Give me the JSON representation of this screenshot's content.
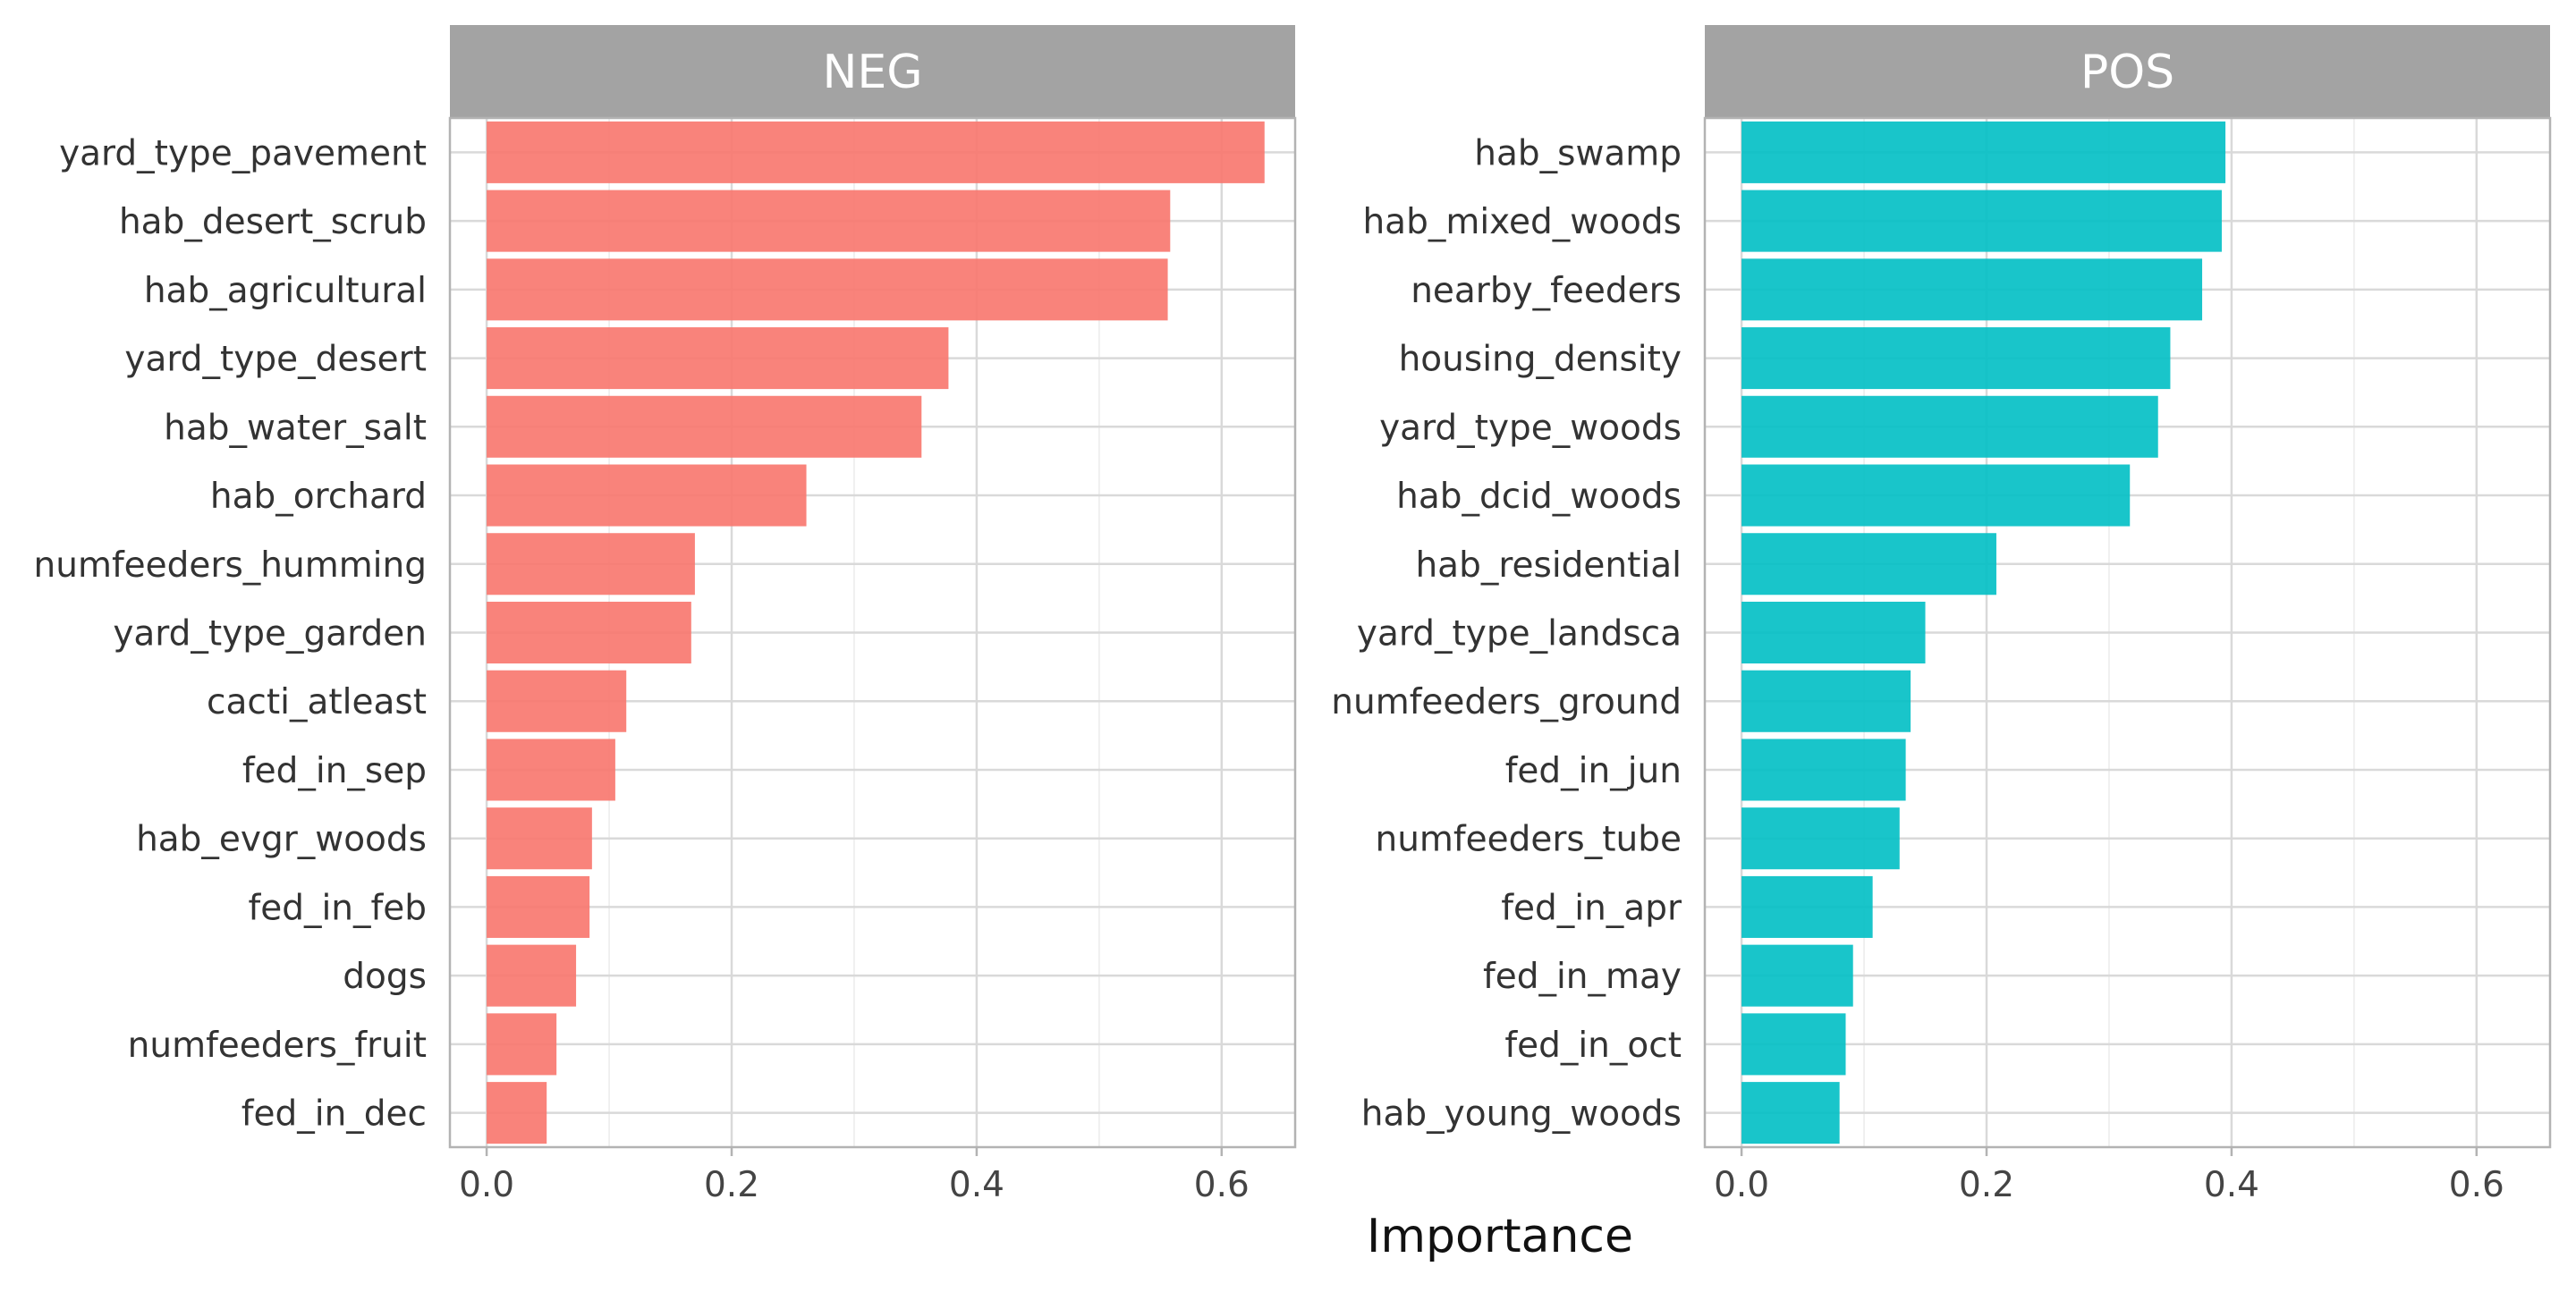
{
  "chart_data": {
    "type": "bar",
    "orientation": "horizontal",
    "xlabel": "Importance",
    "xlim": [
      -0.03,
      0.66
    ],
    "x_ticks": [
      0.0,
      0.2,
      0.4,
      0.6
    ],
    "x_tick_labels": [
      "0.0",
      "0.2",
      "0.4",
      "0.6"
    ],
    "grid": true,
    "panels": [
      {
        "label": "NEG",
        "color": "#F8766D",
        "categories": [
          "yard_type_pavement",
          "hab_desert_scrub",
          "hab_agricultural",
          "yard_type_desert",
          "hab_water_salt",
          "hab_orchard",
          "numfeeders_humming",
          "yard_type_garden",
          "cacti_atleast",
          "fed_in_sep",
          "hab_evgr_woods",
          "fed_in_feb",
          "dogs",
          "numfeeders_fruit",
          "fed_in_dec"
        ],
        "values": [
          0.635,
          0.558,
          0.556,
          0.377,
          0.355,
          0.261,
          0.17,
          0.167,
          0.114,
          0.105,
          0.086,
          0.084,
          0.073,
          0.057,
          0.049
        ]
      },
      {
        "label": "POS",
        "color": "#00BFC4",
        "categories": [
          "hab_swamp",
          "hab_mixed_woods",
          "nearby_feeders",
          "housing_density",
          "yard_type_woods",
          "hab_dcid_woods",
          "hab_residential",
          "yard_type_landsca",
          "numfeeders_ground",
          "fed_in_jun",
          "numfeeders_tube",
          "fed_in_apr",
          "fed_in_may",
          "fed_in_oct",
          "hab_young_woods"
        ],
        "values": [
          0.395,
          0.392,
          0.376,
          0.35,
          0.34,
          0.317,
          0.208,
          0.15,
          0.138,
          0.134,
          0.129,
          0.107,
          0.091,
          0.085,
          0.08
        ]
      }
    ]
  }
}
